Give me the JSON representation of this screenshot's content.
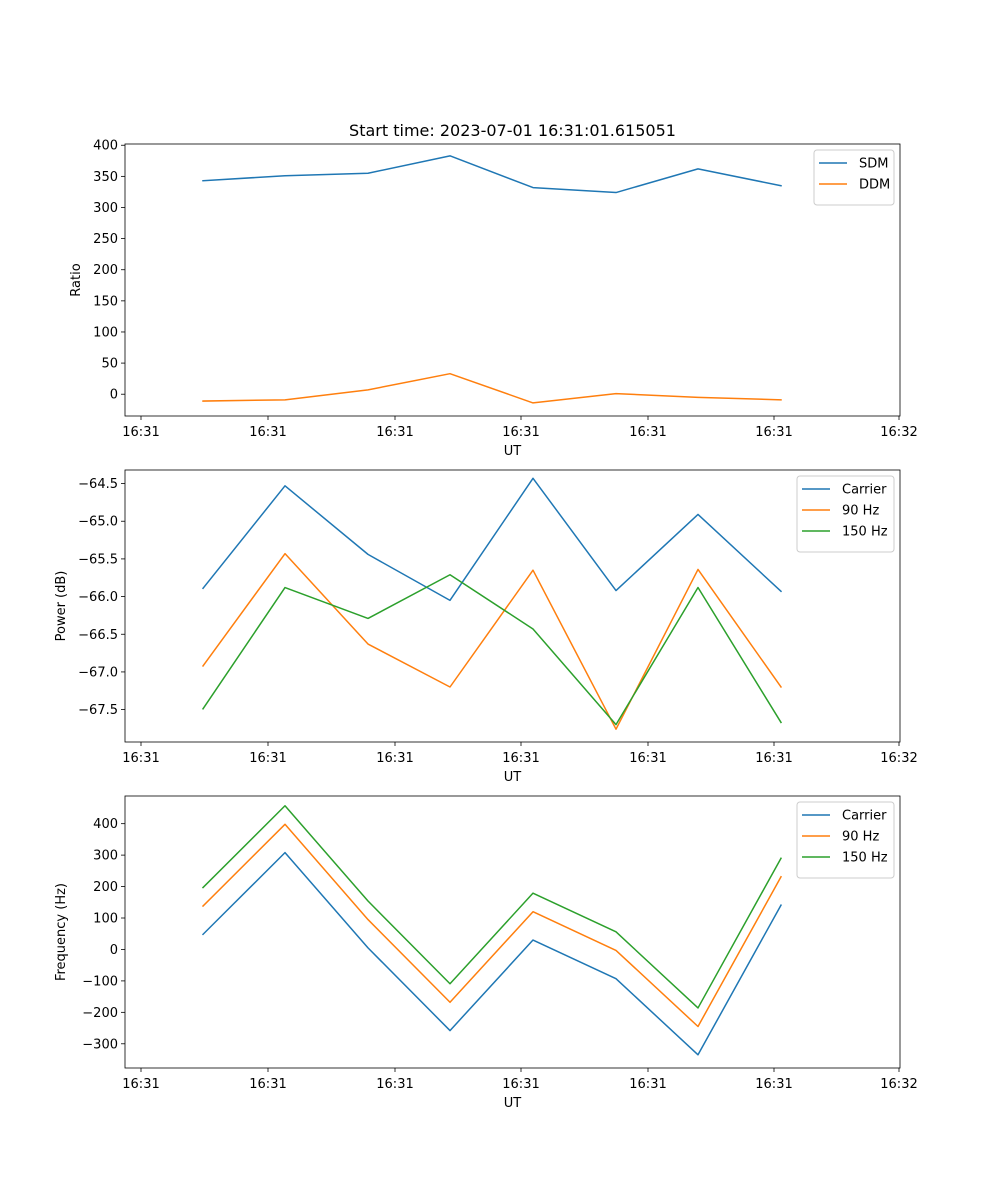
{
  "chart_data": [
    {
      "type": "line",
      "title": "Start time: 2023-07-01 16:31:01.615051",
      "xlabel": "UT",
      "ylabel": "Ratio",
      "x_ticks": [
        "16:31",
        "16:31",
        "16:31",
        "16:31",
        "16:31",
        "16:31",
        "16:32"
      ],
      "y_ticks": [
        "0",
        "50",
        "100",
        "150",
        "200",
        "250",
        "300",
        "350",
        "400"
      ],
      "ylim": [
        -35,
        402
      ],
      "legend_position": "top-right",
      "colors": [
        "#1f77b4",
        "#ff7f0e"
      ],
      "series": [
        {
          "name": "SDM",
          "values": [
            343,
            351,
            355,
            383,
            332,
            324,
            362,
            335
          ]
        },
        {
          "name": "DDM",
          "values": [
            -11,
            -9,
            7,
            33,
            -14,
            1,
            -5,
            -9
          ]
        }
      ]
    },
    {
      "type": "line",
      "title": "",
      "xlabel": "UT",
      "ylabel": "Power (dB)",
      "x_ticks": [
        "16:31",
        "16:31",
        "16:31",
        "16:31",
        "16:31",
        "16:31",
        "16:32"
      ],
      "y_ticks": [
        "−67.5",
        "−67.0",
        "−66.5",
        "−66.0",
        "−65.5",
        "−65.0",
        "−64.5"
      ],
      "ylim": [
        -67.93,
        -64.32
      ],
      "legend_position": "top-right",
      "colors": [
        "#1f77b4",
        "#ff7f0e",
        "#2ca02c"
      ],
      "series": [
        {
          "name": "Carrier",
          "values": [
            -65.89,
            -64.53,
            -65.44,
            -66.05,
            -64.43,
            -65.92,
            -64.91,
            -65.93
          ]
        },
        {
          "name": "90 Hz",
          "values": [
            -66.92,
            -65.43,
            -66.63,
            -67.2,
            -65.65,
            -67.76,
            -65.64,
            -67.2
          ]
        },
        {
          "name": "150 Hz",
          "values": [
            -67.49,
            -65.88,
            -66.29,
            -65.71,
            -66.43,
            -67.7,
            -65.88,
            -67.67
          ]
        }
      ]
    },
    {
      "type": "line",
      "title": "",
      "xlabel": "UT",
      "ylabel": "Frequency (Hz)",
      "x_ticks": [
        "16:31",
        "16:31",
        "16:31",
        "16:31",
        "16:31",
        "16:31",
        "16:32"
      ],
      "y_ticks": [
        "−300",
        "−200",
        "−100",
        "0",
        "100",
        "200",
        "300",
        "400"
      ],
      "ylim": [
        -377,
        488
      ],
      "legend_position": "top-right",
      "colors": [
        "#1f77b4",
        "#ff7f0e",
        "#2ca02c"
      ],
      "series": [
        {
          "name": "Carrier",
          "values": [
            48,
            308,
            5,
            -258,
            30,
            -93,
            -335,
            141
          ]
        },
        {
          "name": "90 Hz",
          "values": [
            138,
            398,
            95,
            -168,
            120,
            -3,
            -245,
            231
          ]
        },
        {
          "name": "150 Hz",
          "values": [
            197,
            457,
            154,
            -109,
            179,
            56,
            -186,
            290
          ]
        }
      ]
    }
  ]
}
